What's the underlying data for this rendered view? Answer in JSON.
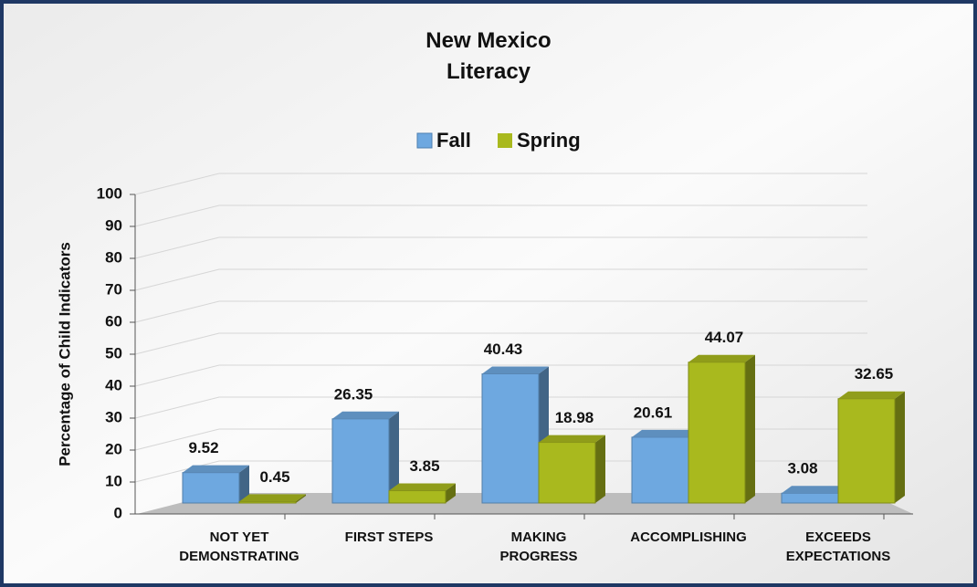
{
  "chart_data": {
    "type": "bar3d",
    "title": "New Mexico\nLiteracy",
    "y_label": "Percentage of Child Indicators",
    "categories": [
      "NOT YET\nDEMONSTRATING",
      "FIRST STEPS",
      "MAKING\nPROGRESS",
      "ACCOMPLISHING",
      "EXCEEDS\nEXPECTATIONS"
    ],
    "series": [
      {
        "name": "Fall",
        "color": "#6ea8e0",
        "values": [
          9.52,
          26.35,
          40.43,
          20.61,
          3.08
        ]
      },
      {
        "name": "Spring",
        "color": "#a9b91e",
        "values": [
          0.45,
          3.85,
          18.98,
          44.07,
          32.65
        ]
      }
    ],
    "ylim": [
      0,
      100
    ],
    "yticks": [
      0,
      10,
      20,
      30,
      40,
      50,
      60,
      70,
      80,
      90,
      100
    ],
    "grid": true,
    "legend": "top"
  }
}
